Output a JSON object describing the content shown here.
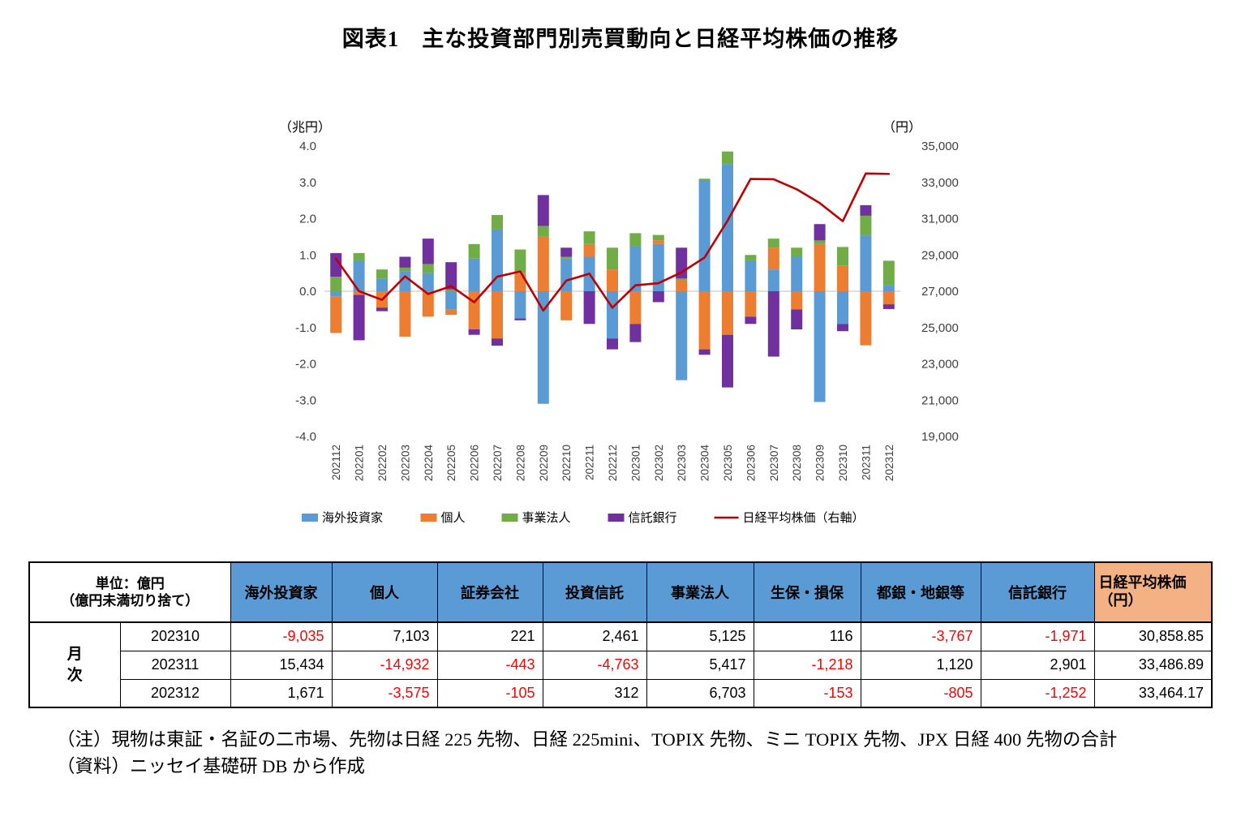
{
  "title": "図表1　主な投資部門別売買動向と日経平均株価の推移",
  "chart_data": {
    "type": "bar",
    "subtype": "stacked-bar-with-line-combo",
    "title": "主な投資部門別売買動向と日経平均株価の推移",
    "categories": [
      "202112",
      "202201",
      "202202",
      "202203",
      "202204",
      "202205",
      "202206",
      "202207",
      "202208",
      "202209",
      "202210",
      "202211",
      "202212",
      "202301",
      "202302",
      "202303",
      "202304",
      "202305",
      "202306",
      "202307",
      "202308",
      "202309",
      "202310",
      "202311",
      "202312"
    ],
    "bar_series": [
      {
        "name": "海外投資家",
        "color": "#5B9BD5",
        "values": [
          -0.15,
          0.85,
          0.35,
          0.55,
          0.5,
          -0.5,
          0.9,
          1.7,
          -0.75,
          -3.1,
          0.9,
          0.95,
          -1.3,
          1.25,
          1.3,
          -2.45,
          3.05,
          3.5,
          0.85,
          0.6,
          0.95,
          -3.05,
          -0.9,
          1.54,
          0.17
        ]
      },
      {
        "name": "個人",
        "color": "#ED7D31",
        "values": [
          -1.0,
          -0.1,
          -0.45,
          -1.25,
          -0.7,
          -0.15,
          -1.05,
          -1.3,
          0.5,
          1.5,
          -0.8,
          0.35,
          0.6,
          -0.9,
          0.1,
          0.3,
          -1.6,
          -1.2,
          -0.7,
          0.6,
          -0.5,
          1.3,
          0.71,
          -1.49,
          -0.36
        ]
      },
      {
        "name": "事業法人",
        "color": "#70AD47",
        "values": [
          0.4,
          0.2,
          0.25,
          0.1,
          0.25,
          0.05,
          0.4,
          0.4,
          0.65,
          0.3,
          0.05,
          0.35,
          0.6,
          0.35,
          0.15,
          0.05,
          0.05,
          0.35,
          0.15,
          0.25,
          0.25,
          0.1,
          0.51,
          0.54,
          0.67
        ]
      },
      {
        "name": "信託銀行",
        "color": "#7030A0",
        "values": [
          0.65,
          -1.25,
          -0.1,
          0.3,
          0.7,
          0.75,
          -0.15,
          -0.2,
          -0.05,
          0.85,
          0.25,
          -0.9,
          -0.3,
          -0.5,
          -0.3,
          0.85,
          -0.15,
          -1.45,
          -0.2,
          -1.8,
          -0.55,
          0.45,
          -0.2,
          0.29,
          -0.13
        ]
      }
    ],
    "line_series": {
      "name": "日経平均株価（右軸）",
      "color": "#C00000",
      "values": [
        28792,
        27002,
        26527,
        27821,
        26848,
        27280,
        26393,
        27802,
        28092,
        25937,
        27587,
        27969,
        26095,
        27327,
        27446,
        28041,
        28856,
        30888,
        33189,
        33172,
        32619,
        31858,
        30859,
        33487,
        33464
      ]
    },
    "left_axis": {
      "label": "（兆円）",
      "min": -4,
      "max": 4,
      "step": 1
    },
    "right_axis": {
      "label": "（円）",
      "min": 19000,
      "max": 35000,
      "step": 2000
    },
    "grid": false,
    "legend_position": "bottom"
  },
  "table": {
    "unit_header": "単位：億円\n（億円未満切り捨て）",
    "headers": [
      "海外投資家",
      "個人",
      "証券会社",
      "投資信託",
      "事業法人",
      "生保・損保",
      "都銀・地銀等",
      "信託銀行",
      "日経平均株価\n（円）"
    ],
    "row_group_label": "月\n次",
    "rows": [
      {
        "month": "202310",
        "values": [
          "-9,035",
          "7,103",
          "221",
          "2,461",
          "5,125",
          "116",
          "-3,767",
          "-1,971",
          "30,858.85"
        ]
      },
      {
        "month": "202311",
        "values": [
          "15,434",
          "-14,932",
          "-443",
          "-4,763",
          "5,417",
          "-1,218",
          "1,120",
          "2,901",
          "33,486.89"
        ]
      },
      {
        "month": "202312",
        "values": [
          "1,671",
          "-3,575",
          "-105",
          "312",
          "6,703",
          "-153",
          "-805",
          "-1,252",
          "33,464.17"
        ]
      }
    ],
    "colors": {
      "header_bg": "#5B9BD5",
      "nikkei_header_bg": "#F4B183",
      "negative_text": "#FF0000"
    }
  },
  "notes": {
    "note1": "（注）現物は東証・名証の二市場、先物は日経 225 先物、日経 225mini、TOPIX 先物、ミニ TOPIX 先物、JPX 日経 400 先物の合計",
    "note2": "（資料）ニッセイ基礎研 DB から作成"
  }
}
